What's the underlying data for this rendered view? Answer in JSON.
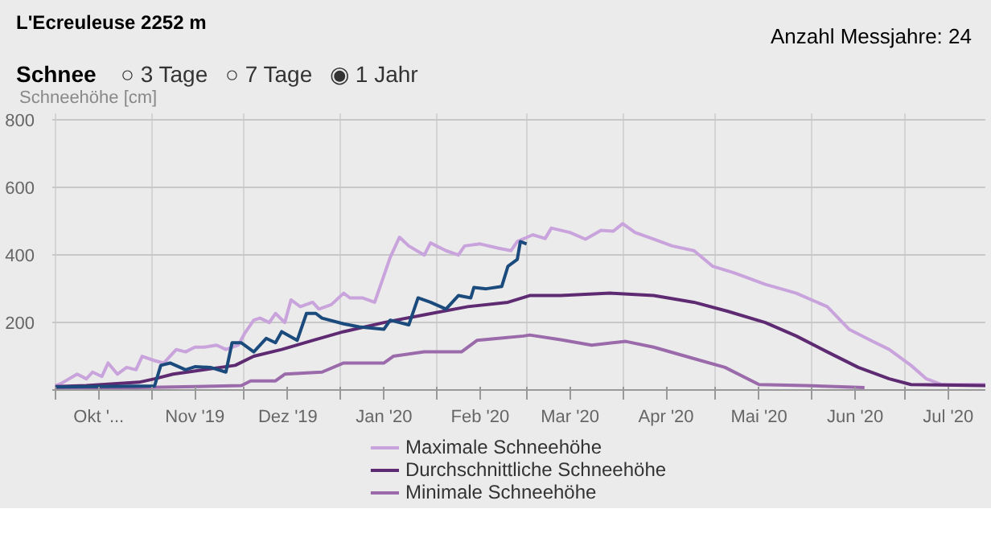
{
  "chart_data": {
    "type": "line",
    "title": "L'Ecreuleuse 2252 m",
    "ylabel": "Schneehöhe [cm]",
    "annotations": [
      "Anzahl Messjahre: 24",
      "Schnee",
      "○ 3 Tage",
      "○ 7 Tage",
      "◉ 1 Jahr"
    ],
    "xlim": [
      "2019-09-30",
      "2020-07-27"
    ],
    "ylim": [
      0,
      820
    ],
    "xticks": [
      {
        "value": "2019-10-01",
        "label": null
      },
      {
        "value": "2019-10-15",
        "label": "Okt '..."
      },
      {
        "value": "2019-11-01",
        "label": null
      },
      {
        "value": "2019-11-15",
        "label": "Nov '19"
      },
      {
        "value": "2019-12-01",
        "label": null
      },
      {
        "value": "2019-12-15",
        "label": "Dez '19"
      },
      {
        "value": "2020-01-01",
        "label": null
      },
      {
        "value": "2020-01-15",
        "label": "Jan '20"
      },
      {
        "value": "2020-02-01",
        "label": null
      },
      {
        "value": "2020-02-15",
        "label": "Feb '20"
      },
      {
        "value": "2020-03-01",
        "label": null
      },
      {
        "value": "2020-03-15",
        "label": "Mar '20"
      },
      {
        "value": "2020-04-01",
        "label": null
      },
      {
        "value": "2020-04-15",
        "label": "Apr '20"
      },
      {
        "value": "2020-05-01",
        "label": null
      },
      {
        "value": "2020-05-15",
        "label": "Mai '20"
      },
      {
        "value": "2020-06-01",
        "label": null
      },
      {
        "value": "2020-06-15",
        "label": "Jun '20"
      },
      {
        "value": "2020-07-01",
        "label": null
      },
      {
        "value": "2020-07-15",
        "label": "Jul '20"
      }
    ],
    "yticks": [
      {
        "value": 0,
        "label": null
      },
      200,
      400,
      600,
      800
    ],
    "grid": true,
    "legend": "bottom",
    "marker": "none",
    "line_style": "solid",
    "series": [
      {
        "name": "Maximale Schneehöhe",
        "color": "#c9a3dc",
        "x": [
          "2019-10-01",
          "2019-10-03",
          "2019-10-08",
          "2019-10-11",
          "2019-10-13",
          "2019-10-16",
          "2019-10-18",
          "2019-10-21",
          "2019-10-24",
          "2019-10-27",
          "2019-10-29",
          "2019-11-02",
          "2019-11-05",
          "2019-11-09",
          "2019-11-12",
          "2019-11-15",
          "2019-11-18",
          "2019-11-22",
          "2019-11-25",
          "2019-11-29",
          "2019-12-01",
          "2019-12-04",
          "2019-12-06",
          "2019-12-09",
          "2019-12-11",
          "2019-12-14",
          "2019-12-16",
          "2019-12-19",
          "2019-12-23",
          "2019-12-25",
          "2019-12-29",
          "2020-01-02",
          "2020-01-04",
          "2020-01-08",
          "2020-01-12",
          "2020-01-17",
          "2020-01-20",
          "2020-01-23",
          "2020-01-28",
          "2020-01-30",
          "2020-02-04",
          "2020-02-08",
          "2020-02-10",
          "2020-02-15",
          "2020-02-21",
          "2020-02-25",
          "2020-02-27",
          "2020-03-03",
          "2020-03-07",
          "2020-03-09",
          "2020-03-15",
          "2020-03-20",
          "2020-03-25",
          "2020-03-29",
          "2020-04-01",
          "2020-04-05",
          "2020-04-11",
          "2020-04-17",
          "2020-04-24",
          "2020-04-30",
          "2020-05-07",
          "2020-05-17",
          "2020-05-27",
          "2020-06-06",
          "2020-06-13",
          "2020-06-20",
          "2020-06-26",
          "2020-07-03",
          "2020-07-08",
          "2020-07-13",
          "2020-07-27"
        ],
        "values": [
          13,
          20,
          47,
          33,
          53,
          40,
          80,
          47,
          67,
          60,
          100,
          87,
          80,
          120,
          113,
          127,
          127,
          133,
          120,
          133,
          167,
          207,
          213,
          200,
          227,
          200,
          267,
          247,
          260,
          240,
          253,
          287,
          273,
          273,
          260,
          393,
          453,
          427,
          400,
          436,
          413,
          400,
          427,
          433,
          420,
          413,
          440,
          460,
          449,
          480,
          467,
          447,
          473,
          471,
          493,
          467,
          447,
          427,
          413,
          367,
          347,
          313,
          287,
          247,
          180,
          147,
          120,
          73,
          33,
          16,
          16
        ]
      },
      {
        "name": "Durchschnittliche Schneehöhe",
        "color": "#5e2a72",
        "x": [
          "2019-10-01",
          "2019-10-11",
          "2019-10-28",
          "2019-11-02",
          "2019-11-08",
          "2019-11-18",
          "2019-11-28",
          "2019-12-04",
          "2019-12-13",
          "2019-12-23",
          "2020-01-02",
          "2020-01-15",
          "2020-01-28",
          "2020-02-11",
          "2020-02-24",
          "2020-03-02",
          "2020-03-12",
          "2020-03-28",
          "2020-04-11",
          "2020-04-24",
          "2020-05-05",
          "2020-05-17",
          "2020-05-27",
          "2020-06-06",
          "2020-06-16",
          "2020-06-26",
          "2020-07-03",
          "2020-07-27"
        ],
        "values": [
          10,
          13,
          23,
          33,
          47,
          60,
          73,
          100,
          120,
          147,
          173,
          200,
          223,
          247,
          260,
          280,
          280,
          287,
          280,
          260,
          233,
          200,
          160,
          113,
          67,
          33,
          16,
          13
        ]
      },
      {
        "name": "Minimale Schneehöhe",
        "color": "#9a6aab",
        "x": [
          "2019-10-01",
          "2019-10-28",
          "2019-11-30",
          "2019-12-03",
          "2019-12-11",
          "2019-12-14",
          "2019-12-26",
          "2020-01-02",
          "2020-01-15",
          "2020-01-18",
          "2020-01-28",
          "2020-02-09",
          "2020-02-14",
          "2020-02-21",
          "2020-02-29",
          "2020-03-02",
          "2020-03-12",
          "2020-03-22",
          "2020-04-02",
          "2020-04-11",
          "2020-04-24",
          "2020-05-04",
          "2020-05-15",
          "2020-05-30",
          "2020-06-18"
        ],
        "values": [
          7,
          7,
          13,
          27,
          27,
          47,
          53,
          80,
          80,
          100,
          113,
          113,
          147,
          153,
          160,
          163,
          149,
          133,
          144,
          127,
          93,
          67,
          16,
          13,
          7
        ]
      },
      {
        "color": "#1b4a7c",
        "x": [
          "2019-10-01",
          "2019-11-02",
          "2019-11-04",
          "2019-11-07",
          "2019-11-12",
          "2019-11-15",
          "2019-11-20",
          "2019-11-25",
          "2019-11-27",
          "2019-11-30",
          "2019-12-04",
          "2019-12-08",
          "2019-12-11",
          "2019-12-13",
          "2019-12-18",
          "2019-12-21",
          "2019-12-24",
          "2019-12-26",
          "2020-01-02",
          "2020-01-07",
          "2020-01-15",
          "2020-01-17",
          "2020-01-23",
          "2020-01-26",
          "2020-01-30",
          "2020-02-04",
          "2020-02-08",
          "2020-02-12",
          "2020-02-13",
          "2020-02-17",
          "2020-02-22",
          "2020-02-24",
          "2020-02-27",
          "2020-02-28",
          "2020-03-01"
        ],
        "values": [
          9,
          12,
          73,
          80,
          60,
          69,
          67,
          53,
          140,
          140,
          113,
          153,
          140,
          173,
          147,
          227,
          227,
          213,
          196,
          187,
          180,
          207,
          193,
          273,
          260,
          240,
          280,
          273,
          304,
          300,
          307,
          367,
          387,
          440,
          433
        ]
      }
    ]
  }
}
